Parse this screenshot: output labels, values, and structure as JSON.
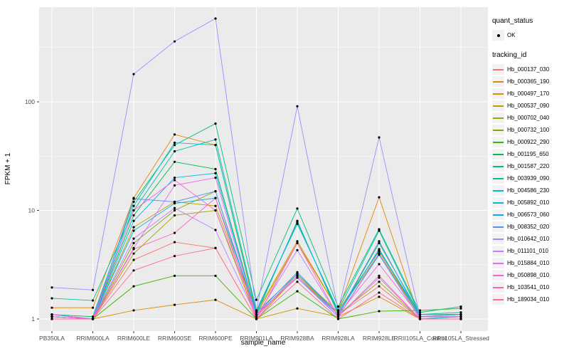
{
  "chart_data": {
    "type": "line",
    "title": "",
    "xlabel": "sample_name",
    "ylabel": "FPKM + 1",
    "y_scale": "log10",
    "ylim": [
      0.93,
      750
    ],
    "y_ticks": [
      1,
      10,
      100
    ],
    "y_minor_ticks": [
      3.162,
      31.62,
      316.2
    ],
    "grid": "on",
    "legend_position": "right",
    "panel_bg": "#EBEBEB",
    "grid_color": "#FFFFFF",
    "tick_label_color": "#4D4D4D",
    "point_color": "#000000",
    "categories": [
      "PB350LA",
      "RRIM600LA",
      "RRIM600LE",
      "RRIM600SE",
      "RRIM600PE",
      "RRIM901LA",
      "RRIM928BA",
      "RRIM928LA",
      "RRIM928LE",
      "RRII105LA_Control",
      "RRII105LA_Stressed"
    ],
    "series": [
      {
        "name": "Hb_000137_030",
        "color": "#F8766D",
        "values": [
          1.1,
          1.0,
          3.5,
          5.1,
          4.5,
          1.0,
          2.5,
          1.1,
          2.0,
          1.0,
          1.0
        ]
      },
      {
        "name": "Hb_000365_190",
        "color": "#E58700",
        "values": [
          1.27,
          1.27,
          13,
          50,
          40,
          1.1,
          5.0,
          1.2,
          13.2,
          1.0,
          1.05
        ]
      },
      {
        "name": "Hb_000497_170",
        "color": "#D89000",
        "values": [
          1.05,
          1.0,
          1.2,
          1.35,
          1.5,
          1.0,
          1.25,
          1.05,
          1.6,
          1.0,
          1.0
        ]
      },
      {
        "name": "Hb_000537_090",
        "color": "#C09B00",
        "values": [
          1.1,
          1.0,
          7.0,
          12,
          11,
          1.15,
          5.2,
          1.2,
          4.2,
          1.05,
          1.1
        ]
      },
      {
        "name": "Hb_000702_040",
        "color": "#A3A500",
        "values": [
          1.05,
          1.0,
          4.0,
          9.0,
          10,
          1.0,
          2.5,
          1.1,
          2.2,
          1.0,
          1.0
        ]
      },
      {
        "name": "Hb_000732_100",
        "color": "#7CAE00",
        "values": [
          1.1,
          1.0,
          5.0,
          10,
          15,
          1.05,
          2.6,
          1.15,
          4.0,
          1.05,
          1.05
        ]
      },
      {
        "name": "Hb_000922_290",
        "color": "#39B600",
        "values": [
          1.0,
          1.0,
          2.0,
          2.5,
          2.5,
          1.0,
          1.8,
          1.0,
          1.18,
          1.2,
          1.25
        ]
      },
      {
        "name": "Hb_001195_650",
        "color": "#00BB4E",
        "values": [
          1.05,
          1.0,
          9.0,
          28,
          24,
          1.1,
          8.0,
          1.1,
          5.0,
          1.1,
          1.1
        ]
      },
      {
        "name": "Hb_001587_220",
        "color": "#00BF7D",
        "values": [
          1.1,
          1.05,
          12,
          40,
          63,
          1.5,
          10.4,
          1.3,
          6.7,
          1.15,
          1.3
        ]
      },
      {
        "name": "Hb_003939_090",
        "color": "#00C1A3",
        "values": [
          1.55,
          1.48,
          10,
          35,
          45,
          1.2,
          7.5,
          1.2,
          6.5,
          1.1,
          1.15
        ]
      },
      {
        "name": "Hb_004586_230",
        "color": "#00BFC4",
        "values": [
          1.1,
          1.0,
          11,
          42,
          40,
          1.15,
          2.6,
          1.1,
          4.4,
          1.05,
          1.1
        ]
      },
      {
        "name": "Hb_005892_010",
        "color": "#00B8E5",
        "values": [
          1.05,
          1.0,
          8.0,
          20,
          22,
          1.1,
          2.4,
          1.05,
          3.9,
          1.0,
          1.05
        ]
      },
      {
        "name": "Hb_006573_060",
        "color": "#00AFF8",
        "values": [
          1.1,
          1.0,
          6.5,
          11.6,
          13,
          1.16,
          7.8,
          1.15,
          4.3,
          1.1,
          1.1
        ]
      },
      {
        "name": "Hb_008352_020",
        "color": "#5A8DFF",
        "values": [
          1.05,
          1.0,
          12.8,
          12,
          15,
          1.1,
          2.7,
          1.1,
          5.2,
          1.05,
          1.05
        ]
      },
      {
        "name": "Hb_010642_010",
        "color": "#9590FF",
        "values": [
          1.95,
          1.85,
          180,
          360,
          585,
          1.2,
          91,
          1.2,
          47,
          1.05,
          1.05
        ]
      },
      {
        "name": "Hb_011101_010",
        "color": "#C77CFF",
        "values": [
          1.1,
          1.0,
          5.5,
          10.5,
          6.6,
          1.05,
          4.3,
          1.05,
          2.4,
          1.0,
          1.0
        ]
      },
      {
        "name": "Hb_015884_010",
        "color": "#E76BF3",
        "values": [
          1.0,
          1.0,
          4.5,
          17,
          20,
          1.05,
          2.5,
          1.05,
          4.0,
          1.0,
          1.0
        ]
      },
      {
        "name": "Hb_050898_010",
        "color": "#FA62DB",
        "values": [
          1.1,
          1.0,
          10,
          19,
          10,
          1.1,
          2.4,
          1.1,
          3.2,
          1.05,
          1.05
        ]
      },
      {
        "name": "Hb_103541_010",
        "color": "#FF61BF",
        "values": [
          1.05,
          1.0,
          4.4,
          6.2,
          13,
          1.0,
          5.0,
          1.05,
          2.5,
          1.0,
          1.0
        ]
      },
      {
        "name": "Hb_189034_010",
        "color": "#FF6B96",
        "values": [
          1.0,
          1.0,
          2.8,
          3.8,
          4.5,
          1.0,
          2.2,
          1.0,
          1.75,
          1.0,
          1.0
        ]
      }
    ]
  },
  "legend": {
    "quant_status_title": "quant_status",
    "ok_label": "OK",
    "tracking_id_title": "tracking_id"
  }
}
